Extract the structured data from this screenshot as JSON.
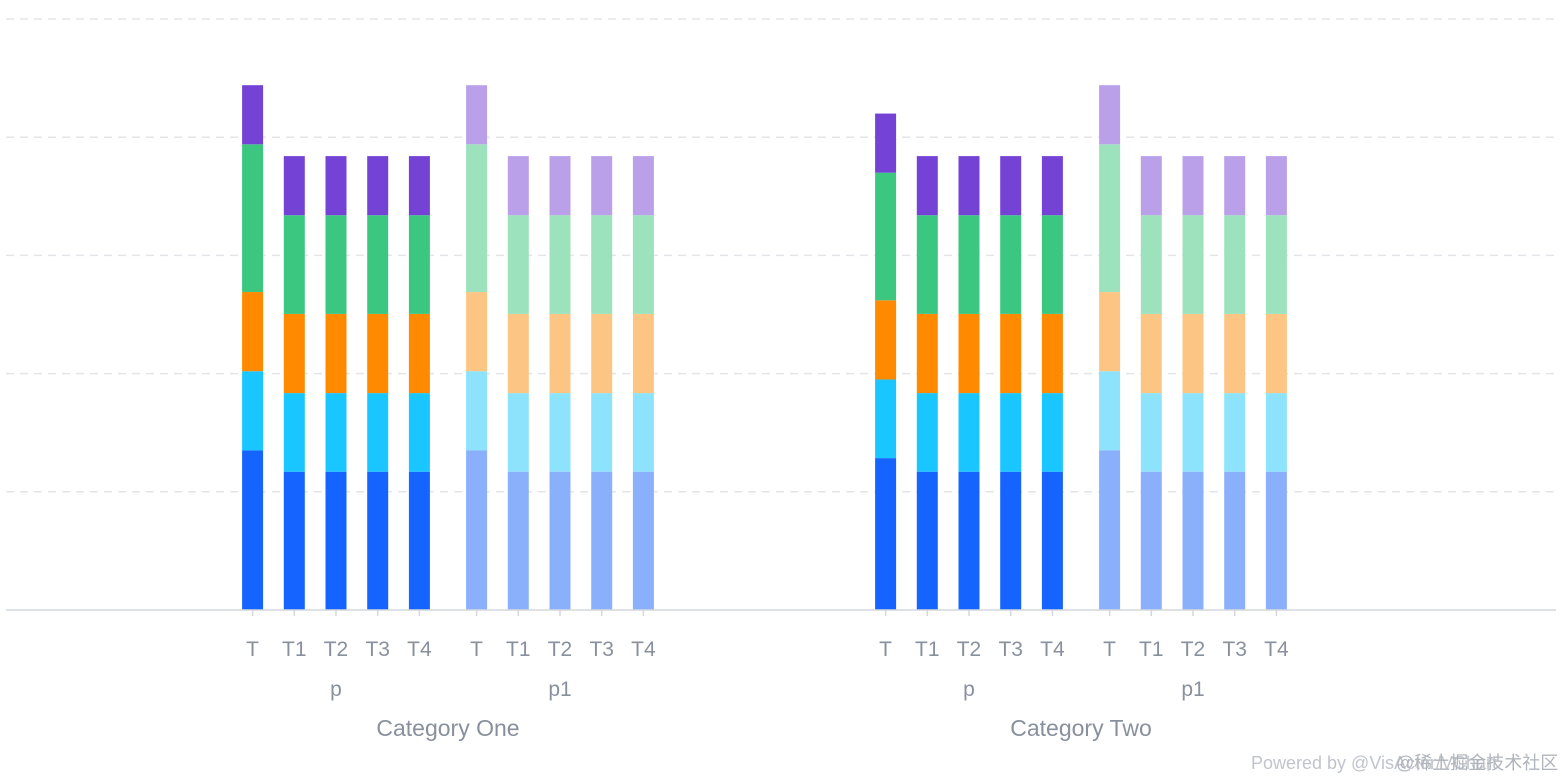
{
  "chart_data": {
    "type": "bar",
    "stacked": true,
    "grouping": "nested",
    "grid": true,
    "title": "",
    "categories": [
      "Category One",
      "Category Two"
    ],
    "subgroups": [
      "p",
      "p1"
    ],
    "ticks": [
      "T",
      "T1",
      "T2",
      "T3",
      "T4"
    ],
    "segment_colors": {
      "p": [
        "#1664ff",
        "#1ac6ff",
        "#ff8a00",
        "#3cc780",
        "#7442d4"
      ],
      "p1": [
        "#8bb0fb",
        "#8de3fb",
        "#fdc583",
        "#9ce2bd",
        "#b9a0e9"
      ]
    },
    "ylim": [
      0,
      100
    ],
    "grid_values": [
      0,
      20,
      40,
      60,
      80,
      100
    ],
    "bars": [
      {
        "category": "Category One",
        "group": "p",
        "tick": "T",
        "segments": [
          27,
          13.4,
          13.4,
          25,
          10
        ]
      },
      {
        "category": "Category One",
        "group": "p",
        "tick": "T1",
        "segments": [
          23.4,
          13.3,
          13.4,
          16.7,
          10
        ]
      },
      {
        "category": "Category One",
        "group": "p",
        "tick": "T2",
        "segments": [
          23.4,
          13.3,
          13.4,
          16.7,
          10
        ]
      },
      {
        "category": "Category One",
        "group": "p",
        "tick": "T3",
        "segments": [
          23.4,
          13.3,
          13.4,
          16.7,
          10
        ]
      },
      {
        "category": "Category One",
        "group": "p",
        "tick": "T4",
        "segments": [
          23.4,
          13.3,
          13.4,
          16.7,
          10
        ]
      },
      {
        "category": "Category One",
        "group": "p1",
        "tick": "T",
        "segments": [
          27,
          13.4,
          13.4,
          25,
          10
        ]
      },
      {
        "category": "Category One",
        "group": "p1",
        "tick": "T1",
        "segments": [
          23.4,
          13.3,
          13.4,
          16.7,
          10
        ]
      },
      {
        "category": "Category One",
        "group": "p1",
        "tick": "T2",
        "segments": [
          23.4,
          13.3,
          13.4,
          16.7,
          10
        ]
      },
      {
        "category": "Category One",
        "group": "p1",
        "tick": "T3",
        "segments": [
          23.4,
          13.3,
          13.4,
          16.7,
          10
        ]
      },
      {
        "category": "Category One",
        "group": "p1",
        "tick": "T4",
        "segments": [
          23.4,
          13.3,
          13.4,
          16.7,
          10
        ]
      },
      {
        "category": "Category Two",
        "group": "p",
        "tick": "T",
        "segments": [
          25.7,
          13.3,
          13.4,
          21.6,
          10
        ]
      },
      {
        "category": "Category Two",
        "group": "p",
        "tick": "T1",
        "segments": [
          23.4,
          13.3,
          13.4,
          16.7,
          10
        ]
      },
      {
        "category": "Category Two",
        "group": "p",
        "tick": "T2",
        "segments": [
          23.4,
          13.3,
          13.4,
          16.7,
          10
        ]
      },
      {
        "category": "Category Two",
        "group": "p",
        "tick": "T3",
        "segments": [
          23.4,
          13.3,
          13.4,
          16.7,
          10
        ]
      },
      {
        "category": "Category Two",
        "group": "p",
        "tick": "T4",
        "segments": [
          23.4,
          13.3,
          13.4,
          16.7,
          10
        ]
      },
      {
        "category": "Category Two",
        "group": "p1",
        "tick": "T",
        "segments": [
          27,
          13.4,
          13.4,
          25,
          10
        ]
      },
      {
        "category": "Category Two",
        "group": "p1",
        "tick": "T1",
        "segments": [
          23.4,
          13.3,
          13.4,
          16.7,
          10
        ]
      },
      {
        "category": "Category Two",
        "group": "p1",
        "tick": "T2",
        "segments": [
          23.4,
          13.3,
          13.4,
          16.7,
          10
        ]
      },
      {
        "category": "Category Two",
        "group": "p1",
        "tick": "T3",
        "segments": [
          23.4,
          13.3,
          13.4,
          16.7,
          10
        ]
      },
      {
        "category": "Category Two",
        "group": "p1",
        "tick": "T4",
        "segments": [
          23.4,
          13.3,
          13.4,
          16.7,
          10
        ]
      }
    ]
  },
  "watermark": {
    "powered_by": "Powered by @VisActor/VChart",
    "overlay": "@稀土掘金技术社区"
  }
}
